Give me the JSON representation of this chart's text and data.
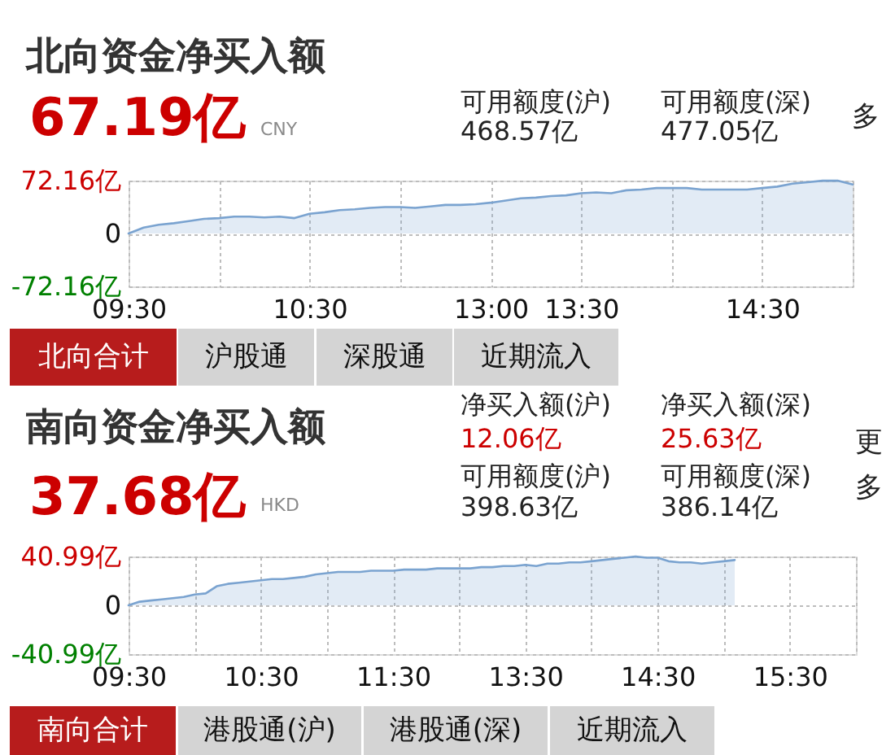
{
  "chart_data": [
    {
      "type": "area",
      "title": "北向资金净买入额",
      "annotations": [
        "67.19亿",
        "CNY",
        "可用额度(沪)",
        "468.57亿",
        "可用额度(深)",
        "477.05亿",
        "多",
        "北向合计",
        "沪股通",
        "深股通",
        "近期流入"
      ],
      "categories": [
        "09:30",
        null,
        null,
        null,
        null,
        null,
        null,
        null,
        null,
        null,
        null,
        null,
        "10:30",
        null,
        null,
        null,
        null,
        null,
        null,
        null,
        null,
        null,
        null,
        null,
        "13:00",
        null,
        null,
        null,
        null,
        null,
        "13:30",
        null,
        null,
        null,
        null,
        null,
        null,
        null,
        null,
        null,
        null,
        null,
        "14:30",
        null,
        null,
        null,
        null,
        null,
        null
      ],
      "series": [
        {
          "color": "#7aa3d0",
          "values": [
            0,
            8,
            12,
            14,
            17,
            20,
            21,
            23,
            23,
            22,
            23,
            21,
            27,
            29,
            32,
            33,
            35,
            36,
            36,
            35,
            37,
            39,
            39,
            40,
            42,
            45,
            48,
            49,
            51,
            52,
            55,
            56,
            55,
            59,
            60,
            62,
            62,
            62,
            60,
            60,
            60,
            60,
            62,
            64,
            68,
            70,
            72,
            72.16,
            67
          ]
        }
      ],
      "ylim": [
        -72.16,
        72.16
      ],
      "yticks": [
        {
          "value": 72.16,
          "label": "72.16亿"
        },
        0,
        {
          "value": -72.16,
          "label": "-72.16亿"
        }
      ],
      "grid": true
    },
    {
      "type": "area",
      "title": "南向资金净买入额",
      "annotations": [
        "37.68亿",
        "HKD",
        "净买入额(沪)",
        "12.06亿",
        "净买入额(深)",
        "25.63亿",
        "可用额度(沪)",
        "398.63亿",
        "可用额度(深)",
        "386.14亿",
        "更多",
        "南向合计",
        "港股通(沪)",
        "港股通(深)",
        "近期流入"
      ],
      "categories": [
        "09:30",
        null,
        null,
        null,
        null,
        null,
        null,
        null,
        null,
        null,
        null,
        null,
        "10:30",
        null,
        null,
        null,
        null,
        null,
        null,
        null,
        null,
        null,
        null,
        null,
        "11:30",
        null,
        null,
        null,
        null,
        null,
        null,
        null,
        null,
        null,
        null,
        null,
        "13:30",
        null,
        null,
        null,
        null,
        null,
        null,
        null,
        null,
        null,
        null,
        null,
        "14:30",
        null,
        null,
        null,
        null,
        null,
        null,
        null,
        null,
        null,
        null,
        null,
        "15:30",
        null,
        null,
        null,
        null,
        null,
        null
      ],
      "series": [
        {
          "color": "#7aa3d0",
          "values": [
            0,
            3,
            4,
            5,
            6,
            7,
            9,
            10,
            16,
            18,
            19,
            20,
            21,
            22,
            22,
            23,
            24,
            26,
            27,
            28,
            28,
            28,
            29,
            29,
            29,
            30,
            30,
            30,
            31,
            31,
            31,
            31,
            32,
            32,
            33,
            33,
            34,
            33,
            35,
            35,
            36,
            36,
            37,
            38,
            39,
            40,
            40.99,
            40,
            40,
            37,
            36,
            36,
            35,
            36,
            37,
            38,
            null,
            null,
            null,
            null,
            null,
            null,
            null,
            null,
            null,
            null,
            null
          ]
        }
      ],
      "ylim": [
        -40.99,
        40.99
      ],
      "yticks": [
        {
          "value": 40.99,
          "label": "40.99亿"
        },
        0,
        {
          "value": -40.99,
          "label": "-40.99亿"
        }
      ],
      "grid": true
    }
  ]
}
